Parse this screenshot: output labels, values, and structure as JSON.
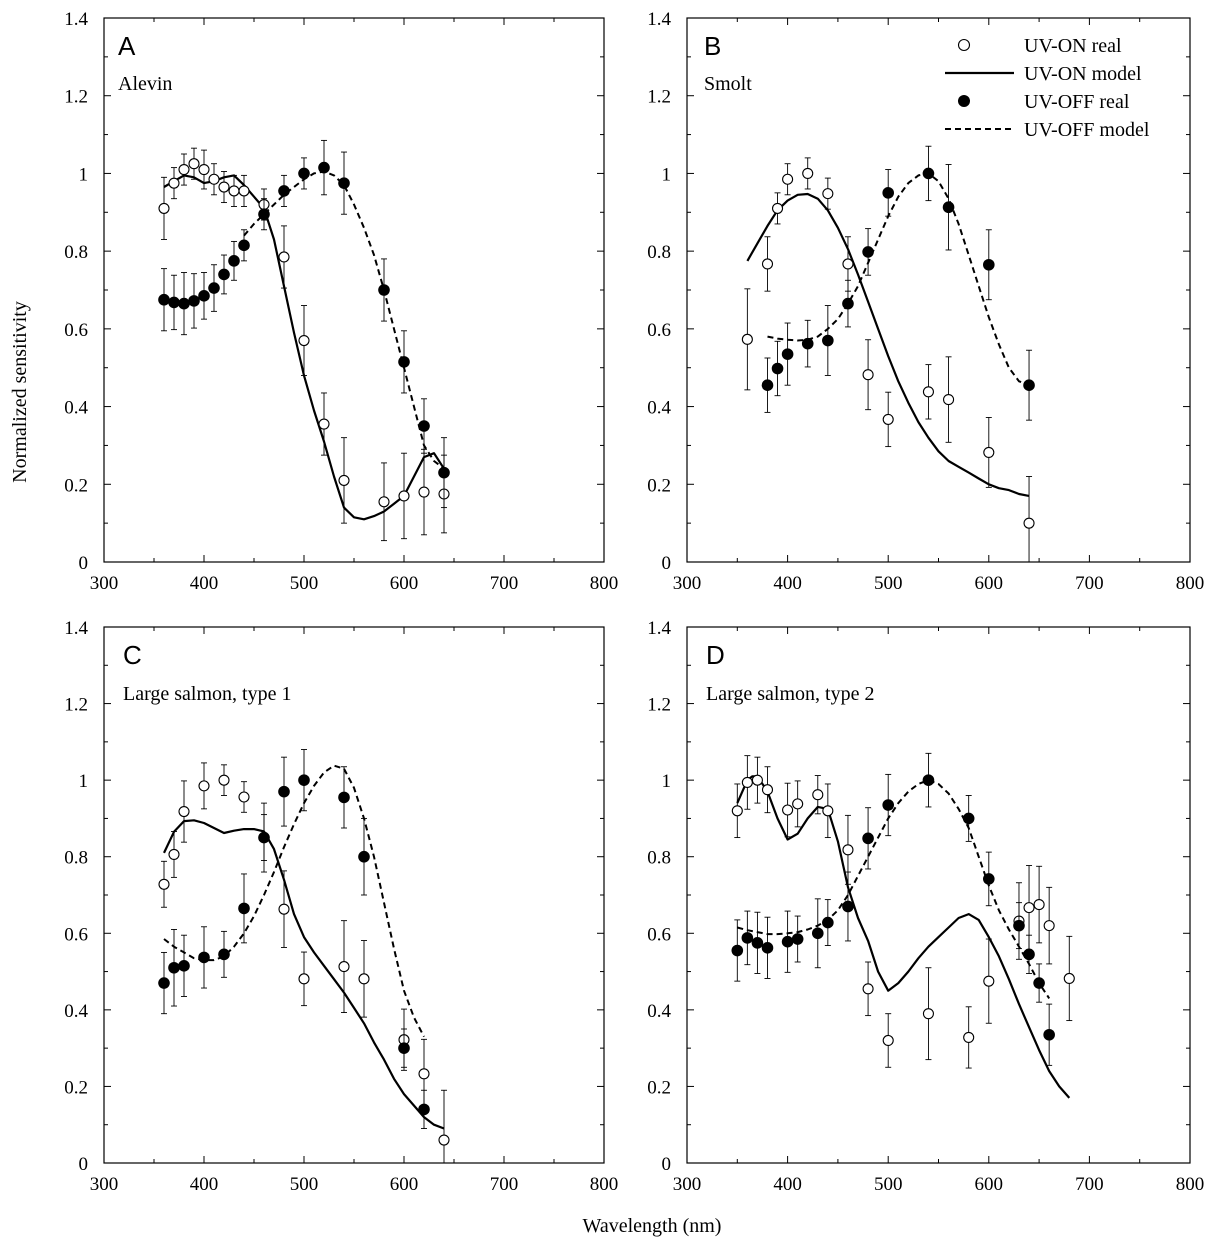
{
  "figure": {
    "xlabel": "Wavelength (nm)",
    "ylabel": "Normalized sensitivity"
  },
  "legend": {
    "on_real": "UV-ON real",
    "on_model": "UV-ON model",
    "off_real": "UV-OFF real",
    "off_model": "UV-OFF model"
  },
  "chart_data": [
    {
      "type": "scatter",
      "panel": "A",
      "subtitle": "Alevin",
      "xlim": [
        300,
        800
      ],
      "ylim": [
        0,
        1.4
      ],
      "xticks": [
        "300",
        "400",
        "500",
        "600",
        "700",
        "800"
      ],
      "yticks": [
        "0",
        "0.2",
        "0.4",
        "0.6",
        "0.8",
        "1",
        "1.2",
        "1.4"
      ],
      "series": [
        {
          "name": "UV-ON real",
          "kind": "open",
          "x": [
            360,
            370,
            380,
            390,
            400,
            410,
            420,
            430,
            440,
            460,
            480,
            500,
            520,
            540,
            580,
            600,
            620,
            640
          ],
          "y": [
            0.91,
            0.975,
            1.01,
            1.025,
            1.01,
            0.985,
            0.965,
            0.955,
            0.955,
            0.92,
            0.785,
            0.57,
            0.355,
            0.21,
            0.155,
            0.17,
            0.18,
            0.175
          ],
          "err": [
            0.08,
            0.04,
            0.04,
            0.04,
            0.05,
            0.04,
            0.04,
            0.04,
            0.04,
            0.04,
            0.08,
            0.09,
            0.08,
            0.11,
            0.1,
            0.11,
            0.11,
            0.1
          ]
        },
        {
          "name": "UV-OFF real",
          "kind": "filled",
          "x": [
            360,
            370,
            380,
            390,
            400,
            410,
            420,
            430,
            440,
            460,
            480,
            500,
            520,
            540,
            580,
            600,
            620,
            640
          ],
          "y": [
            0.675,
            0.668,
            0.665,
            0.672,
            0.685,
            0.705,
            0.74,
            0.775,
            0.815,
            0.895,
            0.955,
            1.0,
            1.015,
            0.975,
            0.7,
            0.515,
            0.35,
            0.23
          ],
          "err": [
            0.08,
            0.07,
            0.08,
            0.07,
            0.06,
            0.06,
            0.05,
            0.05,
            0.04,
            0.04,
            0.04,
            0.04,
            0.07,
            0.08,
            0.08,
            0.08,
            0.07,
            0.09
          ]
        },
        {
          "name": "UV-ON model",
          "kind": "solid",
          "x": [
            360,
            370,
            380,
            390,
            400,
            410,
            420,
            430,
            440,
            450,
            460,
            470,
            480,
            490,
            500,
            510,
            520,
            530,
            540,
            550,
            560,
            570,
            580,
            590,
            600,
            610,
            620,
            630,
            640
          ],
          "y": [
            0.965,
            0.98,
            0.995,
            0.99,
            0.975,
            0.98,
            0.99,
            0.995,
            0.97,
            0.94,
            0.91,
            0.83,
            0.71,
            0.59,
            0.48,
            0.39,
            0.31,
            0.22,
            0.14,
            0.115,
            0.11,
            0.118,
            0.13,
            0.15,
            0.17,
            0.22,
            0.27,
            0.28,
            0.24
          ]
        },
        {
          "name": "UV-OFF model",
          "kind": "dashed",
          "x": [
            440,
            450,
            460,
            470,
            480,
            490,
            500,
            510,
            520,
            530,
            540,
            550,
            560,
            570,
            580,
            590,
            600,
            610,
            620,
            630,
            640
          ],
          "y": [
            0.84,
            0.87,
            0.895,
            0.92,
            0.945,
            0.965,
            0.985,
            1.0,
            1.005,
            0.995,
            0.97,
            0.92,
            0.86,
            0.79,
            0.7,
            0.6,
            0.5,
            0.4,
            0.3,
            0.26,
            0.24
          ]
        }
      ]
    },
    {
      "type": "scatter",
      "panel": "B",
      "subtitle": "Smolt",
      "xlim": [
        300,
        800
      ],
      "ylim": [
        0,
        1.4
      ],
      "xticks": [
        "300",
        "400",
        "500",
        "600",
        "700",
        "800"
      ],
      "yticks": [
        "0",
        "0.2",
        "0.4",
        "0.6",
        "0.8",
        "1",
        "1.2",
        "1.4"
      ],
      "series": [
        {
          "name": "UV-ON real",
          "kind": "open",
          "x": [
            360,
            380,
            390,
            400,
            420,
            440,
            460,
            480,
            500,
            540,
            560,
            600,
            640
          ],
          "y": [
            0.573,
            0.767,
            0.91,
            0.985,
            1.0,
            0.948,
            0.767,
            0.482,
            0.367,
            0.438,
            0.418,
            0.282,
            0.1
          ],
          "err": [
            0.13,
            0.07,
            0.04,
            0.04,
            0.04,
            0.04,
            0.07,
            0.09,
            0.07,
            0.07,
            0.11,
            0.09,
            0.12
          ]
        },
        {
          "name": "UV-OFF real",
          "kind": "filled",
          "x": [
            380,
            390,
            400,
            420,
            440,
            460,
            480,
            500,
            540,
            560,
            600,
            640
          ],
          "y": [
            0.455,
            0.498,
            0.535,
            0.562,
            0.57,
            0.665,
            0.798,
            0.95,
            1.0,
            0.913,
            0.765,
            0.455
          ],
          "err": [
            0.07,
            0.07,
            0.08,
            0.06,
            0.09,
            0.06,
            0.06,
            0.06,
            0.07,
            0.11,
            0.09,
            0.09
          ]
        },
        {
          "name": "UV-ON model",
          "kind": "solid",
          "x": [
            360,
            370,
            380,
            390,
            400,
            410,
            420,
            430,
            440,
            450,
            460,
            470,
            480,
            490,
            500,
            510,
            520,
            530,
            540,
            550,
            560,
            570,
            580,
            590,
            600,
            610,
            620,
            630,
            640
          ],
          "y": [
            0.775,
            0.82,
            0.865,
            0.905,
            0.93,
            0.945,
            0.947,
            0.935,
            0.905,
            0.86,
            0.805,
            0.74,
            0.67,
            0.6,
            0.53,
            0.465,
            0.41,
            0.36,
            0.32,
            0.285,
            0.26,
            0.245,
            0.23,
            0.215,
            0.2,
            0.19,
            0.185,
            0.175,
            0.17
          ]
        },
        {
          "name": "UV-OFF model",
          "kind": "dashed",
          "x": [
            380,
            390,
            400,
            410,
            420,
            430,
            440,
            450,
            460,
            470,
            480,
            490,
            500,
            510,
            520,
            530,
            540,
            550,
            560,
            570,
            580,
            590,
            600,
            610,
            620,
            630,
            640
          ],
          "y": [
            0.58,
            0.575,
            0.572,
            0.57,
            0.572,
            0.58,
            0.6,
            0.625,
            0.665,
            0.71,
            0.77,
            0.83,
            0.89,
            0.94,
            0.975,
            0.995,
            1.0,
            0.98,
            0.935,
            0.87,
            0.79,
            0.71,
            0.63,
            0.56,
            0.5,
            0.465,
            0.455
          ]
        }
      ]
    },
    {
      "type": "scatter",
      "panel": "C",
      "subtitle": "Large salmon, type 1",
      "xlim": [
        300,
        800
      ],
      "ylim": [
        0,
        1.4
      ],
      "xticks": [
        "300",
        "400",
        "500",
        "600",
        "700",
        "800"
      ],
      "yticks": [
        "0",
        "0.2",
        "0.4",
        "0.6",
        "0.8",
        "1",
        "1.2",
        "1.4"
      ],
      "series": [
        {
          "name": "UV-ON real",
          "kind": "open",
          "x": [
            360,
            370,
            380,
            400,
            420,
            440,
            460,
            480,
            500,
            540,
            560,
            600,
            620,
            640
          ],
          "y": [
            0.728,
            0.806,
            0.918,
            0.985,
            1.0,
            0.956,
            0.85,
            0.663,
            0.481,
            0.513,
            0.481,
            0.322,
            0.233,
            0.06
          ],
          "err": [
            0.06,
            0.06,
            0.08,
            0.06,
            0.04,
            0.04,
            0.09,
            0.1,
            0.07,
            0.12,
            0.1,
            0.08,
            0.09,
            0.13
          ]
        },
        {
          "name": "UV-OFF real",
          "kind": "filled",
          "x": [
            360,
            370,
            380,
            400,
            420,
            440,
            460,
            480,
            500,
            540,
            560,
            600,
            620
          ],
          "y": [
            0.47,
            0.51,
            0.515,
            0.537,
            0.545,
            0.665,
            0.85,
            0.97,
            1.0,
            0.955,
            0.8,
            0.3,
            0.14
          ],
          "err": [
            0.08,
            0.1,
            0.08,
            0.08,
            0.06,
            0.09,
            0.06,
            0.09,
            0.08,
            0.08,
            0.1,
            0.05,
            0.05
          ]
        },
        {
          "name": "UV-ON model",
          "kind": "solid",
          "x": [
            360,
            370,
            380,
            390,
            400,
            410,
            420,
            430,
            440,
            450,
            460,
            470,
            480,
            490,
            500,
            510,
            520,
            530,
            540,
            550,
            560,
            570,
            580,
            590,
            600,
            610,
            620,
            630,
            640
          ],
          "y": [
            0.81,
            0.865,
            0.893,
            0.895,
            0.888,
            0.875,
            0.862,
            0.868,
            0.872,
            0.872,
            0.866,
            0.82,
            0.74,
            0.65,
            0.59,
            0.55,
            0.515,
            0.48,
            0.445,
            0.405,
            0.365,
            0.315,
            0.27,
            0.22,
            0.18,
            0.15,
            0.12,
            0.1,
            0.09
          ]
        },
        {
          "name": "UV-OFF model",
          "kind": "dashed",
          "x": [
            360,
            370,
            380,
            390,
            400,
            410,
            420,
            430,
            440,
            450,
            460,
            470,
            480,
            490,
            500,
            510,
            520,
            530,
            540,
            550,
            560,
            570,
            580,
            590,
            600,
            610,
            620
          ],
          "y": [
            0.585,
            0.565,
            0.55,
            0.535,
            0.53,
            0.53,
            0.54,
            0.565,
            0.6,
            0.645,
            0.7,
            0.76,
            0.825,
            0.885,
            0.94,
            0.985,
            1.02,
            1.038,
            1.03,
            0.98,
            0.9,
            0.8,
            0.68,
            0.56,
            0.45,
            0.38,
            0.33
          ]
        }
      ]
    },
    {
      "type": "scatter",
      "panel": "D",
      "subtitle": "Large salmon, type 2",
      "xlim": [
        300,
        800
      ],
      "ylim": [
        0,
        1.4
      ],
      "xticks": [
        "300",
        "400",
        "500",
        "600",
        "700",
        "800"
      ],
      "yticks": [
        "0",
        "0.2",
        "0.4",
        "0.6",
        "0.8",
        "1",
        "1.2",
        "1.4"
      ],
      "series": [
        {
          "name": "UV-ON real",
          "kind": "open",
          "x": [
            350,
            360,
            370,
            380,
            400,
            410,
            430,
            440,
            460,
            480,
            500,
            540,
            580,
            600,
            630,
            640,
            650,
            660,
            680
          ],
          "y": [
            0.92,
            0.994,
            1.0,
            0.975,
            0.922,
            0.938,
            0.962,
            0.92,
            0.818,
            0.455,
            0.32,
            0.39,
            0.328,
            0.475,
            0.632,
            0.667,
            0.675,
            0.62,
            0.482
          ],
          "err": [
            0.07,
            0.07,
            0.06,
            0.06,
            0.07,
            0.06,
            0.05,
            0.07,
            0.09,
            0.07,
            0.07,
            0.12,
            0.08,
            0.11,
            0.1,
            0.11,
            0.1,
            0.1,
            0.11
          ]
        },
        {
          "name": "UV-OFF real",
          "kind": "filled",
          "x": [
            350,
            360,
            370,
            380,
            400,
            410,
            430,
            440,
            460,
            480,
            500,
            540,
            580,
            600,
            630,
            640,
            650,
            660
          ],
          "y": [
            0.555,
            0.588,
            0.575,
            0.562,
            0.578,
            0.585,
            0.6,
            0.628,
            0.67,
            0.848,
            0.935,
            1.0,
            0.9,
            0.742,
            0.62,
            0.545,
            0.47,
            0.335
          ],
          "err": [
            0.08,
            0.07,
            0.08,
            0.08,
            0.08,
            0.06,
            0.09,
            0.06,
            0.09,
            0.08,
            0.08,
            0.07,
            0.06,
            0.07,
            0.06,
            0.05,
            0.05,
            0.08
          ]
        },
        {
          "name": "UV-ON model",
          "kind": "solid",
          "x": [
            350,
            360,
            365,
            370,
            380,
            390,
            400,
            410,
            420,
            430,
            440,
            450,
            460,
            470,
            480,
            490,
            500,
            510,
            520,
            530,
            540,
            550,
            560,
            570,
            580,
            590,
            600,
            610,
            620,
            630,
            640,
            650,
            660,
            670,
            680
          ],
          "y": [
            0.94,
            1.0,
            1.01,
            1.01,
            0.97,
            0.9,
            0.845,
            0.86,
            0.9,
            0.93,
            0.925,
            0.84,
            0.72,
            0.64,
            0.58,
            0.5,
            0.45,
            0.47,
            0.5,
            0.535,
            0.565,
            0.59,
            0.615,
            0.64,
            0.65,
            0.635,
            0.59,
            0.54,
            0.48,
            0.415,
            0.355,
            0.295,
            0.24,
            0.2,
            0.17
          ]
        },
        {
          "name": "UV-OFF model",
          "kind": "dashed",
          "x": [
            350,
            360,
            370,
            380,
            390,
            400,
            410,
            420,
            430,
            440,
            450,
            460,
            470,
            480,
            490,
            500,
            510,
            520,
            530,
            540,
            550,
            560,
            570,
            580,
            590,
            600,
            610,
            620,
            630,
            640,
            650,
            660
          ],
          "y": [
            0.615,
            0.608,
            0.603,
            0.598,
            0.598,
            0.6,
            0.603,
            0.61,
            0.62,
            0.635,
            0.66,
            0.7,
            0.75,
            0.8,
            0.85,
            0.9,
            0.94,
            0.97,
            0.99,
            1.0,
            0.99,
            0.965,
            0.925,
            0.875,
            0.8,
            0.725,
            0.66,
            0.61,
            0.565,
            0.52,
            0.47,
            0.43
          ]
        }
      ]
    }
  ]
}
